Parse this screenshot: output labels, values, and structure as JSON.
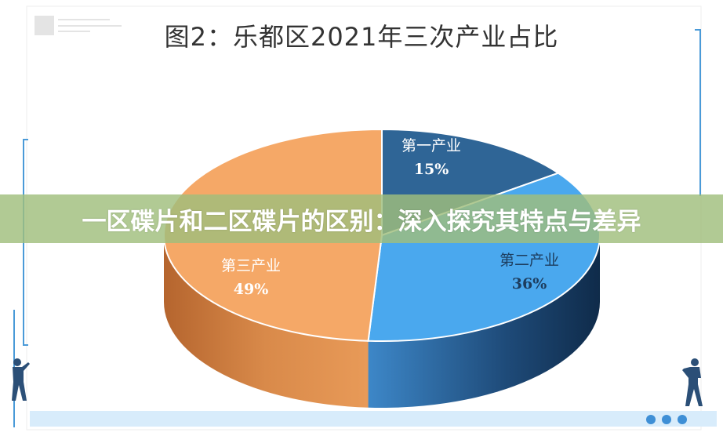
{
  "chart_data": {
    "type": "pie",
    "title": "图2：乐都区2021年三次产业占比",
    "slices": [
      {
        "label": "第一产业",
        "value": 15,
        "value_label": "15%",
        "color": "#2f6596"
      },
      {
        "label": "第二产业",
        "value": 36,
        "value_label": "36%",
        "color": "#4aa8ee"
      },
      {
        "label": "第三产业",
        "value": 49,
        "value_label": "49%",
        "color": "#f5a867"
      }
    ],
    "style": "3d",
    "start": "top",
    "direction": "clockwise"
  },
  "banner": {
    "text": "一区碟片和二区碟片的区别：深入探究其特点与差异",
    "color": "#a0be7d"
  },
  "accent": "#3e8fd6"
}
